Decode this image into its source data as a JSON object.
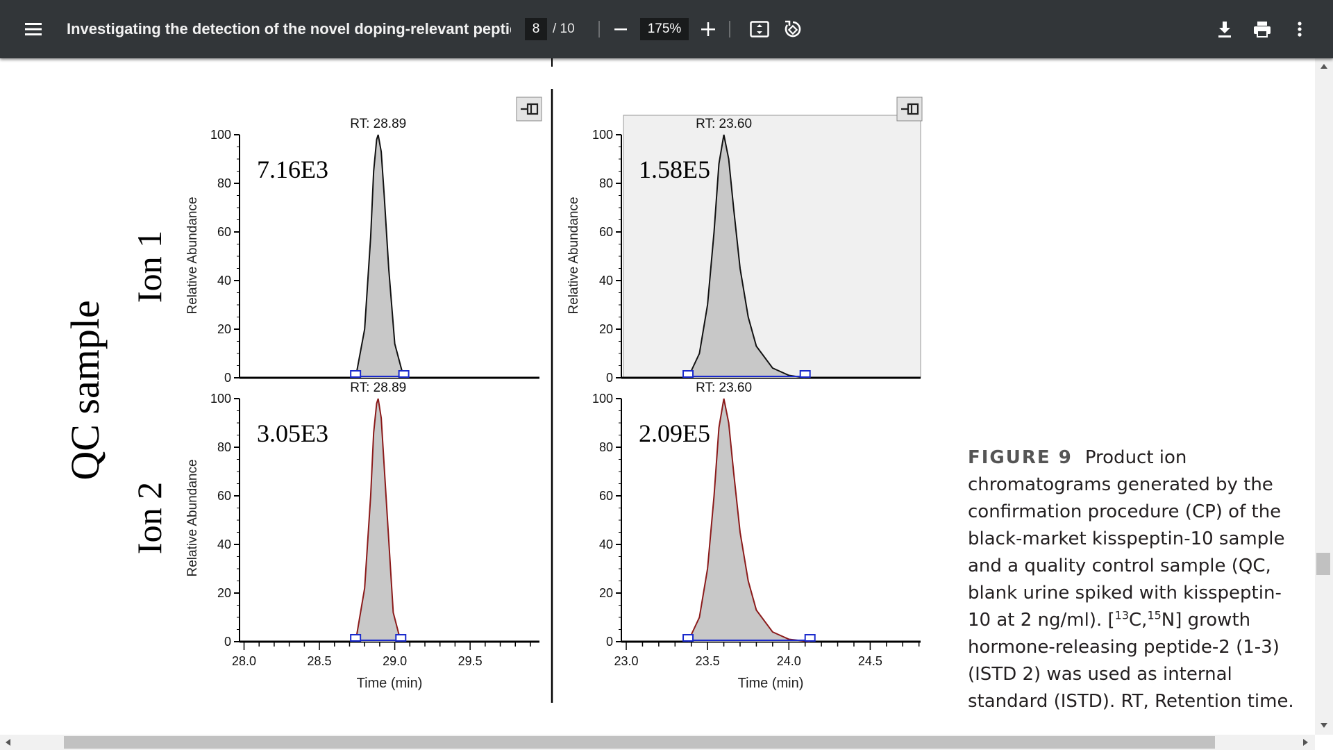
{
  "toolbar": {
    "title": "Investigating the detection of the novel doping-relevant peptide...",
    "page_current": "8",
    "page_total": "/ 10",
    "zoom": "175%",
    "icons": [
      "menu-icon",
      "zoom-out-icon",
      "zoom-in-icon",
      "fit-page-icon",
      "rotate-icon",
      "download-icon",
      "print-icon",
      "more-options-icon"
    ]
  },
  "figure": {
    "sample_label": "QC sample",
    "row_labels": [
      "Ion 1",
      "Ion 2"
    ],
    "y_axis_label": "Relative Abundance",
    "x_axis_label": "Time (min)"
  },
  "caption": {
    "label": "FIGURE 9",
    "text_before_isotopes": "Product ion chromatograms generated by the confirmation procedure (CP) of the black-market kisspeptin-10 sample and a quality control sample (QC, blank urine spiked with kisspeptin-10 at 2 ng/ml). [",
    "isotope_c_mass": "13",
    "isotope_c_symbol": "C,",
    "isotope_n_mass": "15",
    "text_after_isotopes": "N] growth hormone-releasing peptide-2 (1-3) (ISTD 2) was used as internal standard (ISTD). RT, Retention time."
  },
  "chart_data": [
    {
      "type": "area",
      "panel": "Ion 1 (left)",
      "rt_label": "RT: 28.89",
      "intensity_label": "7.16E3",
      "peak_rt": 28.89,
      "x_ticks": [
        "28.0",
        "28.5",
        "29.0",
        "29.5"
      ],
      "xlim": [
        27.97,
        29.96
      ],
      "y_ticks": [
        "0",
        "20",
        "40",
        "60",
        "80",
        "100"
      ],
      "ylim": [
        0,
        100
      ],
      "x": [
        28.74,
        28.8,
        28.84,
        28.86,
        28.88,
        28.89,
        28.91,
        28.93,
        28.96,
        29.0,
        29.06
      ],
      "y": [
        0,
        20,
        58,
        85,
        98,
        100,
        93,
        75,
        45,
        14,
        0
      ]
    },
    {
      "type": "area",
      "panel": "Ion 1 (right)",
      "rt_label": "RT: 23.60",
      "intensity_label": "1.58E5",
      "peak_rt": 23.6,
      "x_ticks": [
        "23.0",
        "23.5",
        "24.0",
        "24.5"
      ],
      "xlim": [
        22.97,
        24.81
      ],
      "y_ticks": [
        "0",
        "20",
        "40",
        "60",
        "80",
        "100"
      ],
      "ylim": [
        0,
        100
      ],
      "x": [
        23.38,
        23.45,
        23.5,
        23.54,
        23.57,
        23.6,
        23.63,
        23.66,
        23.7,
        23.75,
        23.8,
        23.9,
        24.0,
        24.1
      ],
      "y": [
        0,
        10,
        30,
        60,
        88,
        100,
        90,
        70,
        45,
        25,
        13,
        4,
        1,
        0
      ]
    },
    {
      "type": "area",
      "panel": "Ion 2 (left)",
      "rt_label": "RT: 28.89",
      "intensity_label": "3.05E3",
      "peak_rt": 28.89,
      "x_ticks": [
        "28.0",
        "28.5",
        "29.0",
        "29.5"
      ],
      "xlim": [
        27.97,
        29.96
      ],
      "y_ticks": [
        "0",
        "20",
        "40",
        "60",
        "80",
        "100"
      ],
      "ylim": [
        0,
        100
      ],
      "x": [
        28.74,
        28.8,
        28.84,
        28.86,
        28.88,
        28.89,
        28.91,
        28.93,
        28.96,
        28.99,
        29.04
      ],
      "y": [
        0,
        22,
        60,
        86,
        98,
        100,
        92,
        72,
        42,
        12,
        0
      ]
    },
    {
      "type": "area",
      "panel": "Ion 2 (right)",
      "rt_label": "RT: 23.60",
      "intensity_label": "2.09E5",
      "peak_rt": 23.6,
      "x_ticks": [
        "23.0",
        "23.5",
        "24.0",
        "24.5"
      ],
      "xlim": [
        22.97,
        24.81
      ],
      "y_ticks": [
        "0",
        "20",
        "40",
        "60",
        "80",
        "100"
      ],
      "ylim": [
        0,
        100
      ],
      "x": [
        23.38,
        23.45,
        23.5,
        23.54,
        23.57,
        23.6,
        23.63,
        23.66,
        23.7,
        23.75,
        23.8,
        23.9,
        24.0,
        24.13
      ],
      "y": [
        0,
        10,
        30,
        60,
        88,
        100,
        90,
        70,
        45,
        25,
        13,
        4,
        1,
        0
      ]
    }
  ],
  "colors": {
    "toolbar_bg": "#323639",
    "peak_fill": "#c8c8c8",
    "ion2_trace": "#8b1a1a",
    "ion1_trace": "#111111",
    "baseline_marker": "#1a2acc"
  }
}
